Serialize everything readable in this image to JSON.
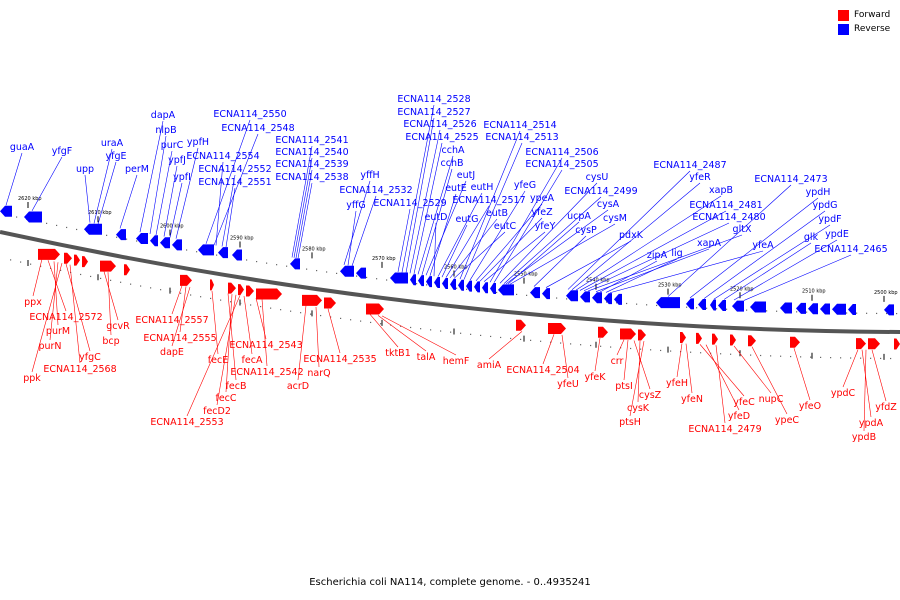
{
  "legend": [
    {
      "label": "Forward",
      "color": "#ff0000"
    },
    {
      "label": "Reverse",
      "color": "#0000ff"
    }
  ],
  "caption": "Escherichia coli NA114, complete genome. - 0..4935241",
  "colors": {
    "forward": "#ff0000",
    "reverse": "#0000ff",
    "backbone": "#555555"
  },
  "ticks": [
    "2620 kbp",
    "2610 kbp",
    "2600 kbp",
    "2590 kbp",
    "2580 kbp",
    "2570 kbp",
    "2560 kbp",
    "2550 kbp",
    "2540 kbp",
    "2530 kbp",
    "2520 kbp",
    "2510 kbp",
    "2500 kbp"
  ],
  "reverse_labels": [
    "guaA",
    "yfgF",
    "upp",
    "uraA",
    "yfgE",
    "perM",
    "dapA",
    "nlpB",
    "purC",
    "ypfJ",
    "ypfI",
    "ypfH",
    "ECNA114_2550",
    "ECNA114_2548",
    "ECNA114_2554",
    "ECNA114_2552",
    "ECNA114_2551",
    "ECNA114_2541",
    "ECNA114_2540",
    "ECNA114_2539",
    "ECNA114_2538",
    "yffH",
    "yffG",
    "ECNA114_2532",
    "ECNA114_2529",
    "ECNA114_2528",
    "ECNA114_2527",
    "ECNA114_2526",
    "ECNA114_2525",
    "cchA",
    "cchB",
    "eutJ",
    "eutE",
    "eutD",
    "eutH",
    "eutG",
    "ECNA114_2517",
    "eutB",
    "eutC",
    "ECNA114_2514",
    "ECNA114_2513",
    "yfeG",
    "ypeA",
    "yfeZ",
    "yfeY",
    "ECNA114_2506",
    "ECNA114_2505",
    "cysU",
    "ECNA114_2499",
    "cysA",
    "ucpA",
    "cysM",
    "cysP",
    "pdxK",
    "ECNA114_2487",
    "yfeR",
    "xapB",
    "ECNA114_2481",
    "ECNA114_2480",
    "gltX",
    "xapA",
    "zipA",
    "lig",
    "yfeA",
    "ECNA114_2473",
    "ypdH",
    "ypdG",
    "ypdF",
    "glk",
    "ypdE",
    "ECNA114_2465"
  ],
  "forward_labels": [
    "ppx",
    "ECNA114_2572",
    "purM",
    "purN",
    "ppk",
    "yfgC",
    "ECNA114_2568",
    "gcvR",
    "bcp",
    "ECNA114_2557",
    "ECNA114_2555",
    "dapE",
    "fecE",
    "fecB",
    "fecC",
    "fecD2",
    "ECNA114_2553",
    "fecA",
    "ECNA114_2543",
    "ECNA114_2542",
    "acrD",
    "narQ",
    "ECNA114_2535",
    "tktB1",
    "talA",
    "hemF",
    "amiA",
    "ECNA114_2504",
    "yfeU",
    "yfeK",
    "crr",
    "ptsI",
    "cysZ",
    "cysK",
    "ptsH",
    "yfeH",
    "yfeN",
    "yfeC",
    "yfeD",
    "ECNA114_2479",
    "nupC",
    "ypeC",
    "yfeO",
    "ypdC",
    "ypdA",
    "ypdB",
    "yfdZ"
  ]
}
